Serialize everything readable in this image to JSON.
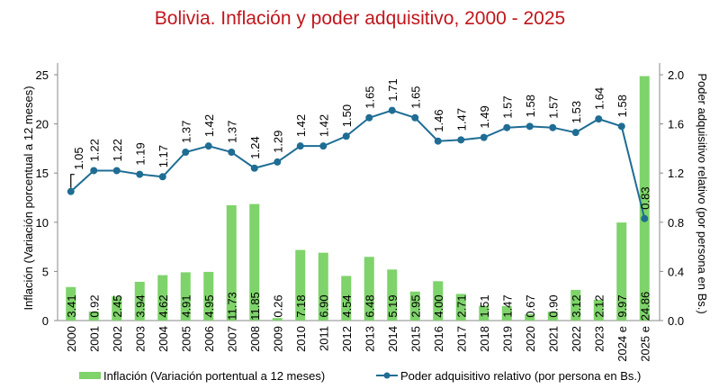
{
  "chart_data": {
    "type": "bar+line",
    "title": "Bolivia. Inflación y poder adquisitivo, 2000 - 2025",
    "categories": [
      "2000",
      "2001",
      "2002",
      "2003",
      "2004",
      "2005",
      "2006",
      "2007",
      "2008",
      "2009",
      "2010",
      "2011",
      "2012",
      "2013",
      "2014",
      "2015",
      "2016",
      "2017",
      "2018",
      "2019",
      "2020",
      "2021",
      "2022",
      "2023",
      "2024 e",
      "2025 e"
    ],
    "series": [
      {
        "name": "Inflación (Variación portentual a 12 meses)",
        "type": "bar",
        "axis": "left",
        "color": "#7ed36a",
        "values": [
          3.41,
          0.92,
          2.45,
          3.94,
          4.62,
          4.91,
          4.95,
          11.73,
          11.85,
          0.26,
          7.18,
          6.9,
          4.54,
          6.48,
          5.19,
          2.95,
          4.0,
          2.71,
          1.51,
          1.47,
          0.67,
          0.9,
          3.12,
          2.12,
          9.97,
          24.86
        ],
        "labels": [
          "3.41",
          "0.92",
          "2.45",
          "3.94",
          "4.62",
          "4.91",
          "4.95",
          "11.73",
          "11.85",
          "0.26",
          "7.18",
          "6.90",
          "4.54",
          "6.48",
          "5.19",
          "2.95",
          "4.00",
          "2.71",
          "1.51",
          "1.47",
          "0.67",
          "0.90",
          "3.12",
          "2.12",
          "9.97",
          "24.86"
        ]
      },
      {
        "name": "Poder adquisitivo relativo (por persona en Bs.)",
        "type": "line",
        "axis": "right",
        "color": "#1f6d94",
        "values": [
          1.05,
          1.22,
          1.22,
          1.19,
          1.17,
          1.37,
          1.42,
          1.37,
          1.24,
          1.29,
          1.42,
          1.42,
          1.5,
          1.65,
          1.71,
          1.65,
          1.46,
          1.47,
          1.49,
          1.57,
          1.58,
          1.57,
          1.53,
          1.64,
          1.58,
          0.83
        ],
        "labels": [
          "1.05",
          "1.22",
          "1.22",
          "1.19",
          "1.17",
          "1.37",
          "1.42",
          "1.37",
          "1.24",
          "1.29",
          "1.42",
          "1.42",
          "1.50",
          "1.65",
          "1.71",
          "1.65",
          "1.46",
          "1.47",
          "1.49",
          "1.57",
          "1.58",
          "1.57",
          "1.53",
          "1.64",
          "1.58",
          "0.83"
        ]
      }
    ],
    "ylabel": "Inflación  (Variación porcentual a 12 meses)",
    "y2label": "Poder adquisitivo relativo (por persona en Bs.)",
    "ylim": [
      0,
      25
    ],
    "y2lim": [
      0,
      2.0
    ],
    "yticks": [
      "0",
      "5",
      "10",
      "15",
      "20",
      "25"
    ],
    "y2ticks": [
      "0.0",
      "0.4",
      "0.8",
      "1.2",
      "1.6",
      "2.0"
    ],
    "legend": "bottom",
    "grid": false,
    "title_color": "#c0161c"
  }
}
